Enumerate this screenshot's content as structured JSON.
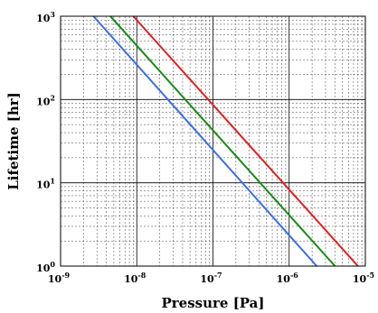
{
  "chart_data": {
    "type": "line",
    "title": "",
    "xlabel": "Pressure [Pa]",
    "ylabel": "Lifetime [hr]",
    "xscale": "log",
    "yscale": "log",
    "xlim": [
      1e-09,
      1e-05
    ],
    "ylim": [
      1,
      1000
    ],
    "grid": "major and minor",
    "legend": "none",
    "x_ticks": [
      {
        "value": 1e-09,
        "base": "10",
        "exp": "-9"
      },
      {
        "value": 1e-08,
        "base": "10",
        "exp": "-8"
      },
      {
        "value": 1e-07,
        "base": "10",
        "exp": "-7"
      },
      {
        "value": 1e-06,
        "base": "10",
        "exp": "-6"
      },
      {
        "value": 1e-05,
        "base": "10",
        "exp": "-5"
      }
    ],
    "y_ticks": [
      {
        "value": 1,
        "base": "10",
        "exp": "0"
      },
      {
        "value": 10,
        "base": "10",
        "exp": "1"
      },
      {
        "value": 100,
        "base": "10",
        "exp": "2"
      },
      {
        "value": 1000,
        "base": "10",
        "exp": "3"
      }
    ],
    "series": [
      {
        "color": "#3a6fe8",
        "points": [
          [
            2.7e-09,
            1000
          ],
          [
            2.3e-06,
            1
          ]
        ]
      },
      {
        "color": "#178a17",
        "points": [
          [
            4.5e-09,
            1000
          ],
          [
            4e-06,
            1
          ]
        ]
      },
      {
        "color": "#e21e1e",
        "points": [
          [
            9e-09,
            1000
          ],
          [
            8e-06,
            1
          ]
        ]
      }
    ]
  }
}
